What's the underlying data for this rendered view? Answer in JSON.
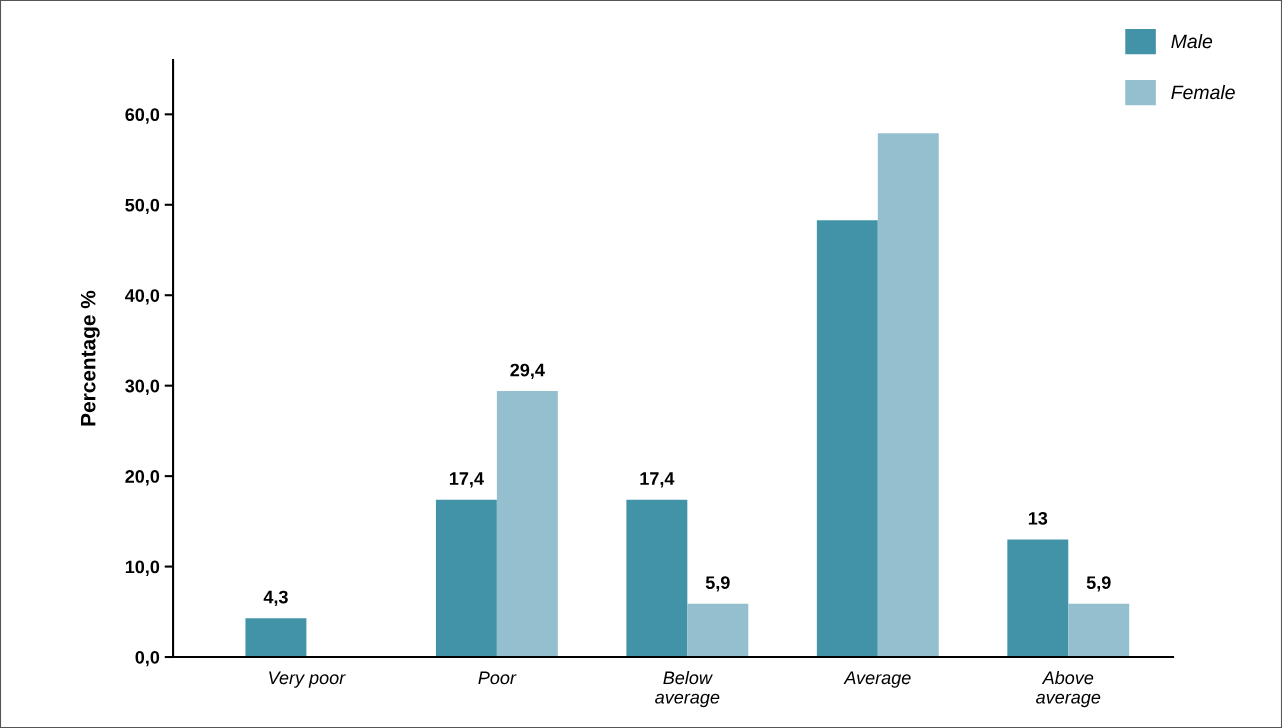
{
  "chart_data": {
    "type": "bar",
    "ylabel": "Percentage %",
    "categories": [
      "Very poor",
      "Poor",
      "Below\naverage",
      "Average",
      "Above\naverage"
    ],
    "series": [
      {
        "name": "Male",
        "color": "#4393a8",
        "values": [
          4.3,
          17.4,
          17.4,
          48.3,
          13
        ],
        "value_labels": [
          "4,3",
          "17,4",
          "17,4",
          null,
          "13"
        ]
      },
      {
        "name": "Female",
        "color": "#93bfcf",
        "values": [
          null,
          29.4,
          5.9,
          57.9,
          5.9
        ],
        "value_labels": [
          null,
          "29,4",
          "5,9",
          null,
          "5,9"
        ]
      }
    ],
    "ylim": [
      0,
      66
    ],
    "yticks": [
      {
        "value": 0,
        "label": "0,0"
      },
      {
        "value": 10,
        "label": "10,0"
      },
      {
        "value": 20,
        "label": "20,0"
      },
      {
        "value": 30,
        "label": "30,0"
      },
      {
        "value": 40,
        "label": "40,0"
      },
      {
        "value": 50,
        "label": "50,0"
      },
      {
        "value": 60,
        "label": "60,0"
      }
    ],
    "grid": false,
    "legend": "top right"
  }
}
